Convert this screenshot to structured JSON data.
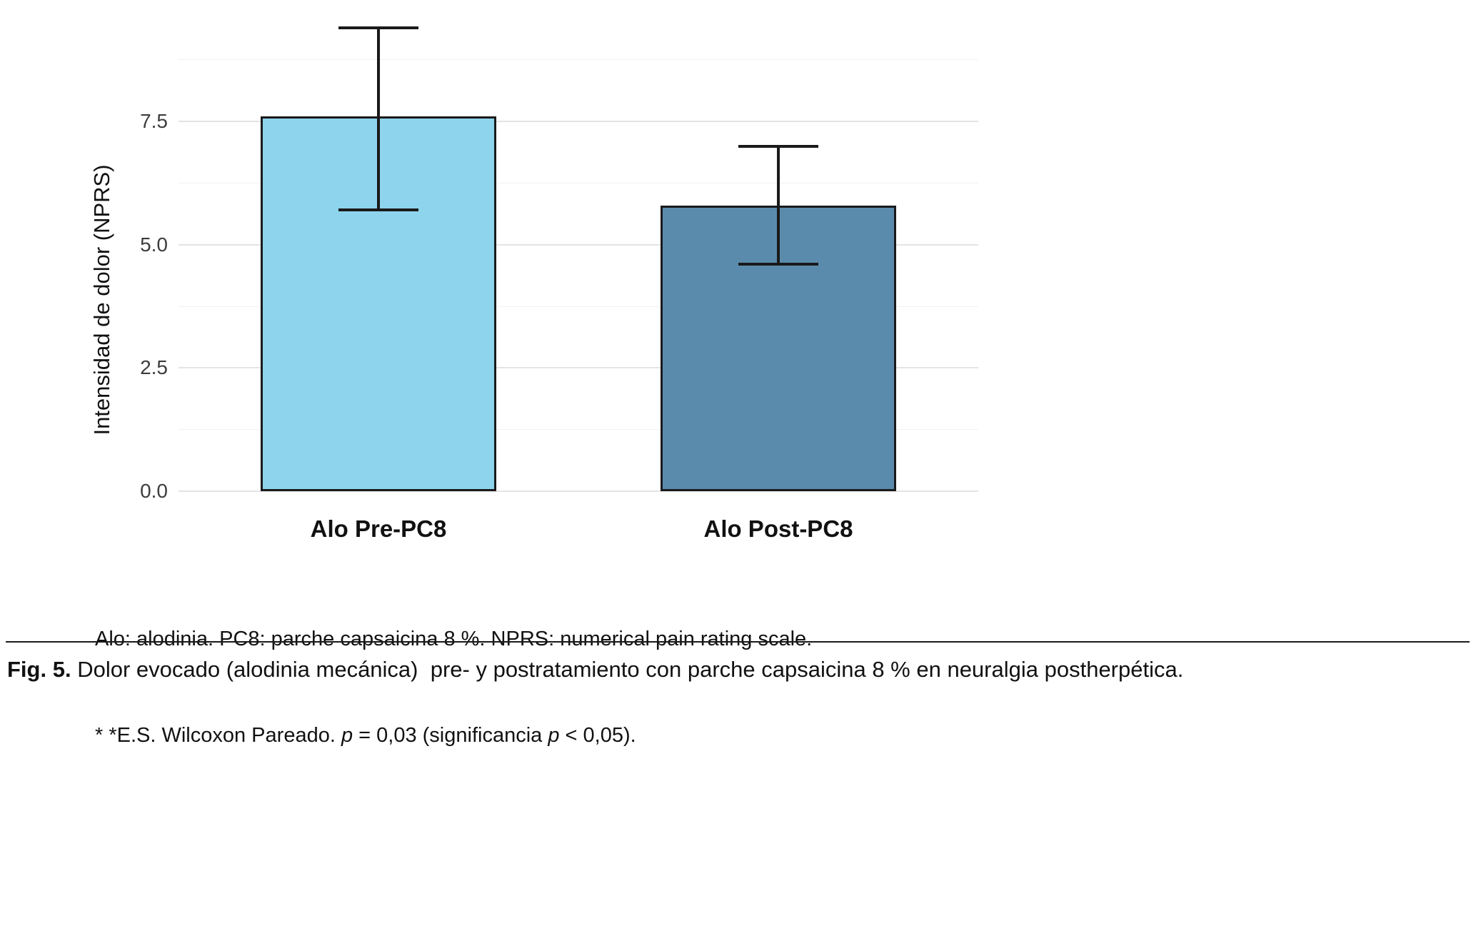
{
  "chart_data": {
    "type": "bar",
    "categories": [
      "Alo Pre-PC8",
      "Alo Post-PC8"
    ],
    "values": [
      7.6,
      5.8
    ],
    "error_low": [
      5.7,
      4.6
    ],
    "error_high": [
      9.4,
      7.0
    ],
    "bar_colors": [
      "#8DD4EC",
      "#5A8BAD"
    ],
    "title": "",
    "xlabel": "",
    "ylabel": "Intensidad de dolor (NPRS)",
    "ylim": [
      0,
      9.85
    ],
    "yticks": [
      0,
      2.5,
      5,
      7.5
    ],
    "ytick_labels": [
      "0.0",
      "2.5",
      "5.0",
      "7.5"
    ],
    "minor_gridlines": [
      1.25,
      3.75,
      6.25,
      8.75
    ],
    "grid": "on",
    "legend": "none"
  },
  "footnote": {
    "line1": "Alo: alodinia. PC8: parche capsaicina 8 %. NPRS: numerical pain rating scale.",
    "line2_prefix": "* *E.S. Wilcoxon Pareado. ",
    "line2_p1": "p",
    "line2_mid": " = 0,03 (significancia ",
    "line2_p2": "p",
    "line2_suffix": " < 0,05)."
  },
  "caption": {
    "label": "Fig. 5.",
    "text": " Dolor evocado (alodinia mecánica)  pre- y postratamiento con parche capsaicina 8 % en neuralgia postherpética."
  }
}
